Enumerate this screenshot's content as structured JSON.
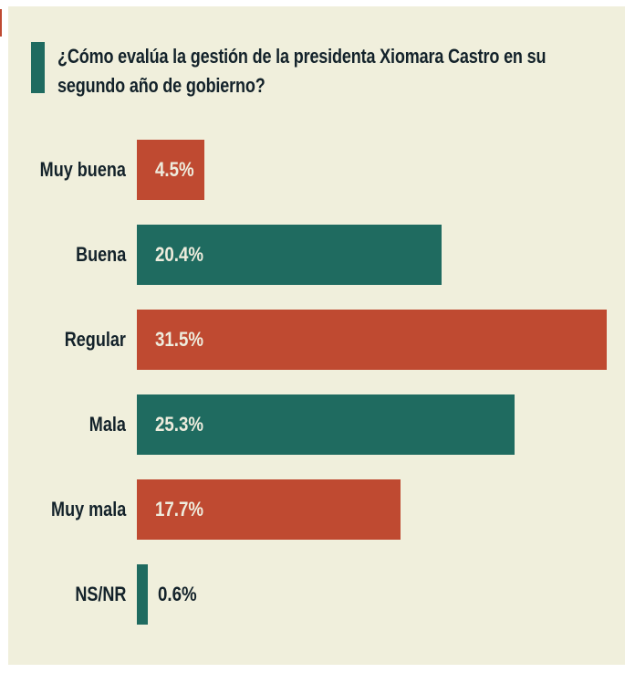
{
  "page": {
    "background": "#ffffff",
    "card_background": "#f0efdc"
  },
  "colors": {
    "red": "#bf4a31",
    "teal": "#1f6b60",
    "text_dark": "#13222a",
    "value_text": "#eeecdd"
  },
  "decor": {
    "left_edge_mark_color": "#bf4a31"
  },
  "title": {
    "full": "¿Cómo evalúa la gestión de la presidenta Xiomara Castro en su segundo año de gobierno?",
    "lines": [
      "¿Cómo evalúa la gestión de la presidenta Xiomara Castro en su",
      "segundo año de gobierno?"
    ],
    "marker_color": "#1f6b60"
  },
  "chart_data": {
    "type": "bar",
    "orientation": "horizontal",
    "title": "¿Cómo evalúa la gestión de la presidenta Xiomara Castro en su segundo año de gobierno?",
    "categories": [
      "Muy buena",
      "Buena",
      "Regular",
      "Mala",
      "Muy mala",
      "NS/NR"
    ],
    "values": [
      4.5,
      20.4,
      31.5,
      25.3,
      17.7,
      0.6
    ],
    "value_labels": [
      "4.5%",
      "20.4%",
      "31.5%",
      "25.3%",
      "17.7%",
      "0.6%"
    ],
    "bar_colors": [
      "#bf4a31",
      "#1f6b60",
      "#bf4a31",
      "#1f6b60",
      "#bf4a31",
      "#1f6b60"
    ],
    "value_label_position": [
      "inside",
      "inside",
      "inside",
      "inside",
      "inside",
      "outside"
    ],
    "xlabel": "",
    "ylabel": "",
    "xlim": [
      0,
      32.5
    ],
    "grid": false,
    "legend": false
  }
}
